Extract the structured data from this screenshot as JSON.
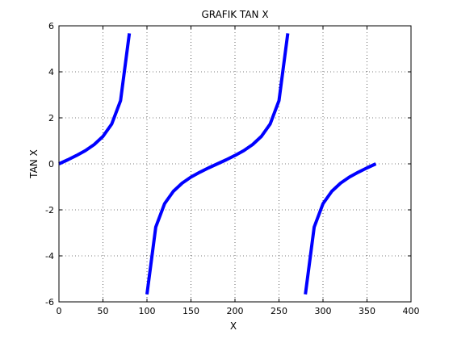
{
  "chart_data": {
    "type": "line",
    "title": "GRAFIK TAN X",
    "xlabel": "X",
    "ylabel": "TAN X",
    "xlim": [
      0,
      400
    ],
    "ylim": [
      -6,
      6
    ],
    "xticks": [
      0,
      50,
      100,
      150,
      200,
      250,
      300,
      350,
      400
    ],
    "yticks": [
      -6,
      -4,
      -2,
      0,
      2,
      4,
      6
    ],
    "grid": true,
    "line_color": "#0000ff",
    "segments": [
      {
        "x": [
          0,
          10,
          20,
          30,
          40,
          50,
          60,
          70,
          80
        ],
        "y": [
          0,
          0.176,
          0.364,
          0.577,
          0.839,
          1.192,
          1.732,
          2.747,
          5.671
        ]
      },
      {
        "x": [
          100,
          110,
          120,
          130,
          140,
          150,
          160,
          170,
          180,
          190,
          200,
          210,
          220,
          230,
          240,
          250,
          260
        ],
        "y": [
          -5.671,
          -2.747,
          -1.732,
          -1.192,
          -0.839,
          -0.577,
          -0.364,
          -0.176,
          0,
          0.176,
          0.364,
          0.577,
          0.839,
          1.192,
          1.732,
          2.747,
          5.671
        ]
      },
      {
        "x": [
          280,
          290,
          300,
          310,
          320,
          330,
          340,
          350,
          360
        ],
        "y": [
          -5.671,
          -2.747,
          -1.732,
          -1.192,
          -0.839,
          -0.577,
          -0.364,
          -0.176,
          0
        ]
      }
    ]
  }
}
